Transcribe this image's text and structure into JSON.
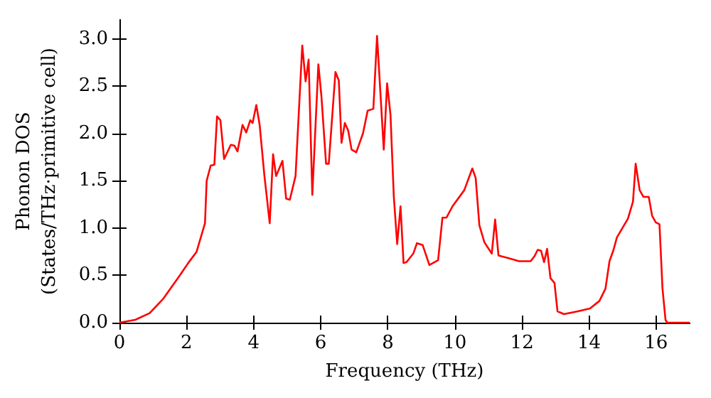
{
  "chart_data": {
    "type": "line",
    "xlabel": "Frequency (THz)",
    "ylabel": "Phonon DOS\n(States/THz·primitive cell)",
    "xlim": [
      0,
      17
    ],
    "xticks": [
      0,
      2,
      4,
      6,
      8,
      10,
      12,
      14,
      16
    ],
    "ylim": [
      0,
      3.2
    ],
    "yticks": [
      {
        "value": 0,
        "label": "0.0"
      },
      0.5,
      {
        "value": 1,
        "label": "1.0"
      },
      1.5,
      {
        "value": 2,
        "label": "2.0"
      },
      2.5,
      {
        "value": 3,
        "label": "3.0"
      }
    ],
    "grid": false,
    "marker": "none",
    "line_style": "solid",
    "series": [
      {
        "color": "#ff0000",
        "x": [
          0,
          0.47,
          0.9,
          1.3,
          1.6,
          1.8,
          2.05,
          2.3,
          2.45,
          2.55,
          2.6,
          2.72,
          2.83,
          2.91,
          3.01,
          3.12,
          3.32,
          3.43,
          3.52,
          3.67,
          3.78,
          3.9,
          3.97,
          4.08,
          4.18,
          4.32,
          4.48,
          4.58,
          4.67,
          4.86,
          4.97,
          5.08,
          5.25,
          5.45,
          5.55,
          5.64,
          5.75,
          5.93,
          6.02,
          6.16,
          6.24,
          6.44,
          6.54,
          6.62,
          6.72,
          6.82,
          6.92,
          7.06,
          7.26,
          7.4,
          7.57,
          7.68,
          7.88,
          7.98,
          8.08,
          8.18,
          8.28,
          8.38,
          8.47,
          8.56,
          8.76,
          8.87,
          9.04,
          9.24,
          9.5,
          9.63,
          9.75,
          9.93,
          10.28,
          10.52,
          10.62,
          10.73,
          10.88,
          11.1,
          11.2,
          11.3,
          11.62,
          11.91,
          12.26,
          12.37,
          12.47,
          12.57,
          12.66,
          12.75,
          12.85,
          12.97,
          13.06,
          13.25,
          13.67,
          14.03,
          14.31,
          14.49,
          14.61,
          14.73,
          14.83,
          15.16,
          15.31,
          15.39,
          15.51,
          15.62,
          15.78,
          15.88,
          15.99,
          16.1,
          16.19,
          16.28,
          16.33,
          17
        ],
        "values": [
          0,
          0.03,
          0.1,
          0.25,
          0.4,
          0.5,
          0.63,
          0.75,
          0.93,
          1.05,
          1.5,
          1.66,
          1.67,
          2.18,
          2.14,
          1.73,
          1.88,
          1.87,
          1.81,
          2.09,
          2.01,
          2.14,
          2.11,
          2.3,
          2.09,
          1.56,
          1.05,
          1.78,
          1.55,
          1.71,
          1.31,
          1.3,
          1.55,
          2.93,
          2.55,
          2.78,
          1.35,
          2.73,
          2.4,
          1.68,
          1.68,
          2.65,
          2.56,
          1.9,
          2.11,
          2.03,
          1.83,
          1.8,
          2.0,
          2.24,
          2.26,
          3.03,
          1.83,
          2.53,
          2.2,
          1.33,
          0.83,
          1.23,
          0.63,
          0.64,
          0.73,
          0.84,
          0.82,
          0.61,
          0.66,
          1.11,
          1.11,
          1.23,
          1.4,
          1.63,
          1.53,
          1.03,
          0.85,
          0.73,
          1.09,
          0.71,
          0.68,
          0.65,
          0.65,
          0.7,
          0.77,
          0.76,
          0.64,
          0.78,
          0.47,
          0.42,
          0.12,
          0.09,
          0.12,
          0.15,
          0.23,
          0.36,
          0.65,
          0.77,
          0.9,
          1.1,
          1.28,
          1.68,
          1.4,
          1.33,
          1.33,
          1.13,
          1.06,
          1.04,
          0.36,
          0.03,
          0,
          0
        ]
      }
    ]
  }
}
